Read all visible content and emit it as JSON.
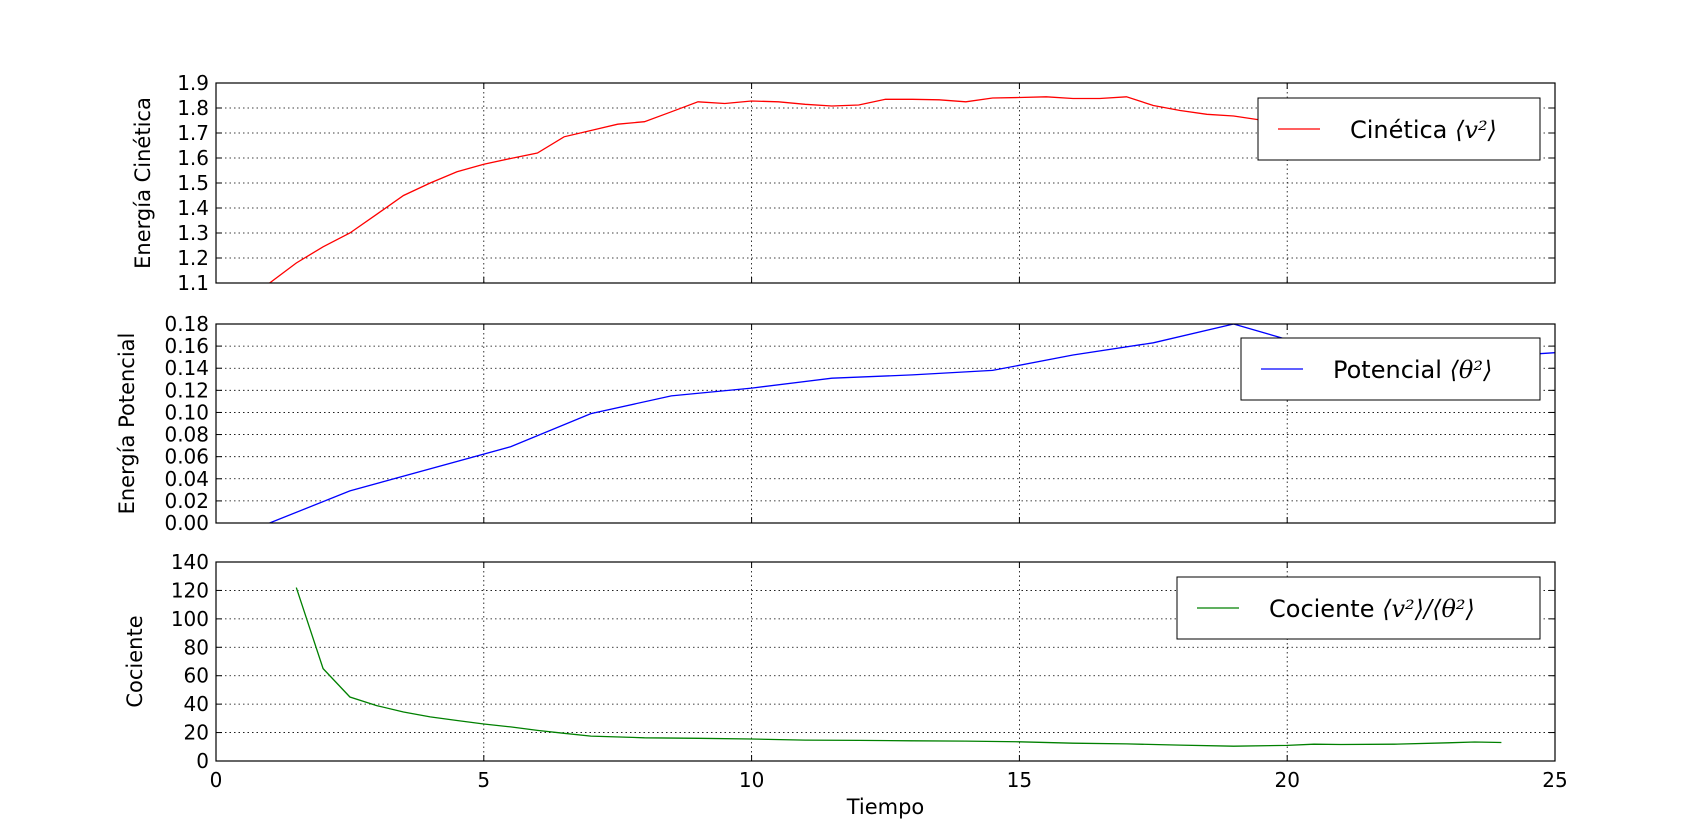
{
  "chart_data": [
    {
      "type": "line",
      "ylabel": "Energía Cinética",
      "ylim": [
        1.1,
        1.9
      ],
      "yticks": [
        "1.1",
        "1.2",
        "1.3",
        "1.4",
        "1.5",
        "1.6",
        "1.7",
        "1.8",
        "1.9"
      ],
      "xlim": [
        0,
        25
      ],
      "grid": true,
      "legend_position": "top-right",
      "series": [
        {
          "name": "Cinética",
          "legend_math": "⟨v²⟩",
          "color": "#ff0000",
          "x": [
            1.0,
            1.5,
            2.0,
            2.5,
            3.0,
            3.5,
            4.0,
            4.5,
            5.0,
            5.5,
            6.0,
            6.5,
            7.0,
            7.5,
            8.0,
            8.5,
            9.0,
            9.5,
            10.0,
            10.5,
            11.0,
            11.5,
            12.0,
            12.5,
            13.0,
            13.5,
            14.0,
            14.5,
            15.0,
            15.5,
            16.0,
            16.5,
            17.0,
            17.5,
            18.0,
            18.5,
            19.0,
            19.5,
            20.0
          ],
          "y": [
            1.1,
            1.18,
            1.245,
            1.3,
            1.375,
            1.45,
            1.5,
            1.545,
            1.575,
            1.598,
            1.62,
            1.685,
            1.71,
            1.735,
            1.745,
            1.785,
            1.825,
            1.818,
            1.828,
            1.825,
            1.815,
            1.808,
            1.812,
            1.835,
            1.835,
            1.833,
            1.825,
            1.84,
            1.842,
            1.845,
            1.838,
            1.838,
            1.845,
            1.81,
            1.79,
            1.775,
            1.768,
            1.752,
            1.738
          ]
        }
      ]
    },
    {
      "type": "line",
      "ylabel": "Energía Potencial",
      "ylim": [
        0.0,
        0.18
      ],
      "yticks": [
        "0.00",
        "0.02",
        "0.04",
        "0.06",
        "0.08",
        "0.10",
        "0.12",
        "0.14",
        "0.16",
        "0.18"
      ],
      "xlim": [
        0,
        25
      ],
      "grid": true,
      "legend_position": "top-right",
      "series": [
        {
          "name": "Potencial",
          "legend_math": "⟨θ²⟩",
          "color": "#0000ff",
          "x": [
            1.0,
            2.5,
            5.5,
            7.0,
            8.5,
            10.0,
            11.5,
            13.0,
            14.5,
            16.0,
            17.5,
            19.0,
            20.0,
            24.0,
            25.0
          ],
          "y": [
            0.0,
            0.029,
            0.069,
            0.099,
            0.115,
            0.122,
            0.131,
            0.134,
            0.138,
            0.152,
            0.163,
            0.18,
            0.166,
            0.151,
            0.154
          ]
        }
      ]
    },
    {
      "type": "line",
      "ylabel": "Cociente",
      "xlabel": "Tiempo",
      "ylim": [
        0,
        140
      ],
      "yticks": [
        "0",
        "20",
        "40",
        "60",
        "80",
        "100",
        "120",
        "140"
      ],
      "xlim": [
        0,
        25
      ],
      "xticks": [
        "0",
        "5",
        "10",
        "15",
        "20",
        "25"
      ],
      "grid": true,
      "legend_position": "top-right",
      "series": [
        {
          "name": "Cociente",
          "legend_math": "⟨v²⟩/⟨θ²⟩",
          "color": "#008000",
          "x": [
            1.5,
            2.0,
            2.5,
            3.0,
            3.5,
            4.0,
            4.5,
            5.0,
            5.5,
            6.0,
            6.5,
            7.0,
            8.0,
            9.0,
            10.0,
            11.0,
            12.0,
            13.0,
            14.0,
            15.0,
            16.0,
            17.0,
            18.0,
            19.0,
            20.0,
            20.5,
            21.0,
            22.0,
            23.0,
            23.5,
            24.0
          ],
          "y": [
            122,
            65,
            45,
            39,
            34.5,
            31,
            28.5,
            26,
            24,
            21.5,
            19.5,
            17.5,
            16.3,
            16,
            15.5,
            14.7,
            14.5,
            14.2,
            14,
            13.5,
            12.5,
            12,
            11.2,
            10.4,
            11,
            11.8,
            11.6,
            11.8,
            12.8,
            13.4,
            13.0
          ]
        }
      ]
    }
  ]
}
